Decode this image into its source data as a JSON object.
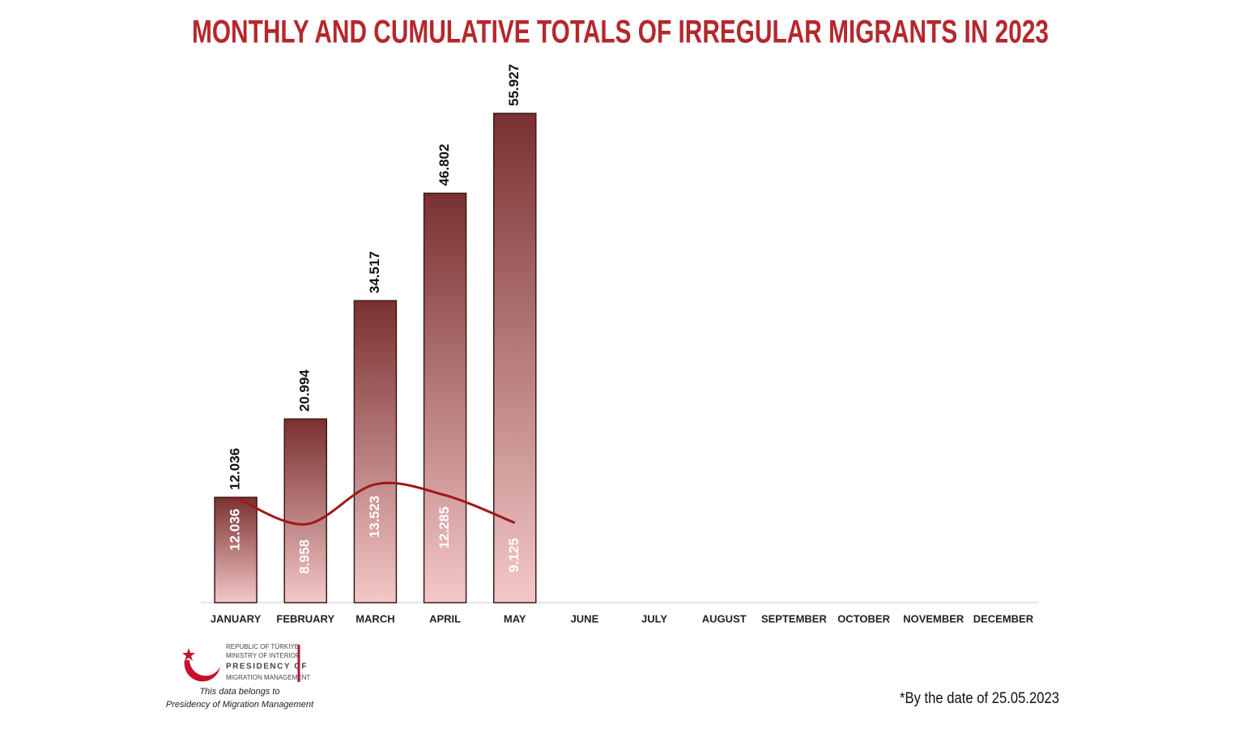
{
  "chart_data": {
    "type": "bar-line",
    "title": "MONTHLY AND CUMULATIVE TOTALS OF IRREGULAR MIGRANTS IN 2023",
    "categories": [
      "JANUARY",
      "FEBRUARY",
      "MARCH",
      "APRIL",
      "MAY",
      "JUNE",
      "JULY",
      "AUGUST",
      "SEPTEMBER",
      "OCTOBER",
      "NOVEMBER",
      "DECEMBER"
    ],
    "series": [
      {
        "type": "bar",
        "color": "#7a3030",
        "color_light": "#f4c8c8",
        "values": [
          12036,
          20994,
          34517,
          46802,
          55927,
          null,
          null,
          null,
          null,
          null,
          null,
          null
        ],
        "value_labels": [
          "12.036",
          "20.994",
          "34.517",
          "46.802",
          "55.927",
          null,
          null,
          null,
          null,
          null,
          null,
          null
        ]
      },
      {
        "type": "line",
        "color": "#a01818",
        "values": [
          12036,
          8958,
          13523,
          12285,
          9125,
          null,
          null,
          null,
          null,
          null,
          null,
          null
        ],
        "value_labels": [
          "12.036",
          "8.958",
          "13.523",
          "12.285",
          "9.125",
          null,
          null,
          null,
          null,
          null,
          null,
          null
        ]
      }
    ],
    "ylim": [
      0,
      60000
    ]
  },
  "logo": {
    "line1": "REPUBLIC OF TÜRKIYE",
    "line2": "MINISTRY OF INTERIOR",
    "line3": "PRESIDENCY OF",
    "line4": "MIGRATION MANAGEMENT"
  },
  "source_note": [
    "This data belongs to",
    "Presidency of Migration Management"
  ],
  "footnote": "*By the date of 25.05.2023"
}
